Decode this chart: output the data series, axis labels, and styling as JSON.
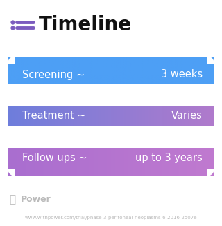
{
  "title": "Timeline",
  "title_fontsize": 20,
  "title_fontweight": "bold",
  "title_color": "#111111",
  "icon_color": "#7c5cbf",
  "background_color": "#ffffff",
  "rows": [
    {
      "left_text": "Screening ~",
      "right_text": "3 weeks",
      "color_left": "#4d9ff5",
      "color_right": "#4d9ff5"
    },
    {
      "left_text": "Treatment ~",
      "right_text": "Varies",
      "color_left": "#6e7edc",
      "color_right": "#b07acc"
    },
    {
      "left_text": "Follow ups ~",
      "right_text": "up to 3 years",
      "color_left": "#a96ecf",
      "color_right": "#c07ad0"
    }
  ],
  "font_color": "#ffffff",
  "text_fontsize": 10.5,
  "watermark_text": "Power",
  "watermark_fontsize": 9,
  "watermark_color": "#bbbbbb",
  "url_text": "www.withpower.com/trial/phase-3-peritoneal-neoplasms-6-2016-2507e",
  "url_fontsize": 5.0,
  "url_color": "#bbbbbb"
}
